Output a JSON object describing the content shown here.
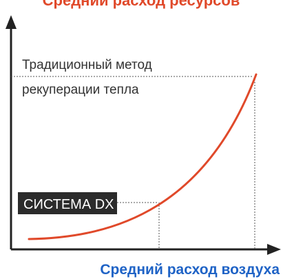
{
  "diagram": {
    "top_title": "Средний расход ресурсов",
    "x_axis_label": "Средний расход воздуха",
    "traditional_line1": "Традиционный метод",
    "traditional_line2": "рекуперации тепла",
    "dx_label": "СИСТЕМА DX",
    "colors": {
      "curve": "#e0492a",
      "x_label": "#1f63c6",
      "top_title": "#e0492a",
      "axis": "#222222",
      "dotted": "#555555",
      "dx_box": "#2b2b2b",
      "dx_text": "#ffffff",
      "text": "#333333"
    }
  }
}
